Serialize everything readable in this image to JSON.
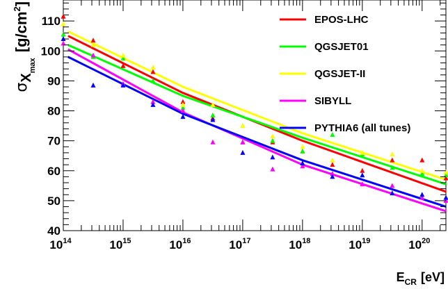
{
  "chart_data": {
    "type": "line",
    "xscale": "log",
    "xlim": [
      100000000000000.0,
      2.5e+20
    ],
    "ylim": [
      40,
      117
    ],
    "xlabel": {
      "main": "E",
      "sub": "CR",
      "unit": "[eV]"
    },
    "ylabel": {
      "sigma": "σ",
      "x": "X",
      "sub": "max",
      "unit_pre": "[g/cm",
      "sup": "2",
      "unit_post": "]"
    },
    "x_ticks": [
      {
        "value": 100000000000000.0,
        "base": "10",
        "exp": "14"
      },
      {
        "value": 1000000000000000.0,
        "base": "10",
        "exp": "15"
      },
      {
        "value": 1e+16,
        "base": "10",
        "exp": "16"
      },
      {
        "value": 1e+17,
        "base": "10",
        "exp": "17"
      },
      {
        "value": 1e+18,
        "base": "10",
        "exp": "18"
      },
      {
        "value": 1e+19,
        "base": "10",
        "exp": "19"
      },
      {
        "value": 1e+20,
        "base": "10",
        "exp": "20"
      }
    ],
    "y_ticks": [
      40,
      50,
      60,
      70,
      80,
      90,
      100,
      110
    ],
    "legend_position": "top-right",
    "series": [
      {
        "name": "EPOS-LHC",
        "color": "#ff0000",
        "line": [
          [
            120000000000000.0,
            105
          ],
          [
            1e+16,
            86
          ],
          [
            1e+18,
            70
          ],
          [
            2.5e+20,
            53
          ]
        ],
        "points": [
          [
            100000000000000.0,
            111.5
          ],
          [
            316000000000000.0,
            103.5
          ],
          [
            1000000000000000.0,
            95
          ],
          [
            3160000000000000.0,
            93
          ],
          [
            1e+16,
            83
          ],
          [
            3.16e+16,
            77.5
          ],
          [
            1e+17,
            69.5
          ],
          [
            3.16e+17,
            69.5
          ],
          [
            1e+18,
            66.5
          ],
          [
            3.16e+18,
            62
          ],
          [
            1e+19,
            60
          ],
          [
            3.16e+19,
            63.5
          ],
          [
            1e+20,
            63.5
          ],
          [
            2.5e+20,
            57.5
          ]
        ]
      },
      {
        "name": "QGSJET01",
        "color": "#00ff00",
        "line": [
          [
            120000000000000.0,
            102
          ],
          [
            1e+16,
            85
          ],
          [
            1e+18,
            71
          ],
          [
            2.5e+20,
            55.5
          ]
        ],
        "points": [
          [
            100000000000000.0,
            105.5
          ],
          [
            316000000000000.0,
            98
          ],
          [
            1000000000000000.0,
            97.5
          ],
          [
            3160000000000000.0,
            90
          ],
          [
            1e+16,
            81
          ],
          [
            3.16e+16,
            78.5
          ],
          [
            1e+17,
            75
          ],
          [
            3.16e+17,
            70
          ],
          [
            1e+18,
            66.5
          ],
          [
            3.16e+18,
            72
          ],
          [
            1e+19,
            65.5
          ],
          [
            3.16e+19,
            61
          ],
          [
            1e+20,
            59
          ],
          [
            2.5e+20,
            58.5
          ]
        ]
      },
      {
        "name": "QGSJET-II",
        "color": "#ffff00",
        "line": [
          [
            120000000000000.0,
            106.5
          ],
          [
            1e+16,
            88
          ],
          [
            1e+18,
            72.5
          ],
          [
            2.5e+20,
            57
          ]
        ],
        "points": [
          [
            100000000000000.0,
            109
          ],
          [
            316000000000000.0,
            102
          ],
          [
            1000000000000000.0,
            98.5
          ],
          [
            3160000000000000.0,
            94.5
          ],
          [
            1e+16,
            82
          ],
          [
            3.16e+16,
            82
          ],
          [
            1e+17,
            75
          ],
          [
            3.16e+17,
            71.5
          ],
          [
            1e+18,
            68
          ],
          [
            3.16e+18,
            63.5
          ],
          [
            1e+19,
            66
          ],
          [
            3.16e+19,
            65.5
          ],
          [
            1e+20,
            60
          ],
          [
            2.5e+20,
            59.5
          ]
        ]
      },
      {
        "name": "SIBYLL",
        "color": "#ff00ff",
        "line": [
          [
            120000000000000.0,
            100.5
          ],
          [
            1e+16,
            79.5
          ],
          [
            1e+18,
            62
          ],
          [
            2.5e+20,
            46.5
          ]
        ],
        "points": [
          [
            100000000000000.0,
            102.5
          ],
          [
            316000000000000.0,
            98.5
          ],
          [
            1000000000000000.0,
            89
          ],
          [
            3160000000000000.0,
            83
          ],
          [
            1e+16,
            80
          ],
          [
            3.16e+16,
            69.5
          ],
          [
            1e+17,
            69.5
          ],
          [
            3.16e+17,
            60.5
          ],
          [
            1e+18,
            61.5
          ],
          [
            3.16e+18,
            59
          ],
          [
            1e+19,
            55.5
          ],
          [
            3.16e+19,
            55
          ],
          [
            1e+20,
            51
          ],
          [
            2.5e+20,
            50
          ]
        ]
      },
      {
        "name": "PYTHIA6 (all tunes)",
        "color": "#0000ff",
        "line": [
          [
            120000000000000.0,
            98
          ],
          [
            1e+16,
            79
          ],
          [
            1e+18,
            63.5
          ],
          [
            2.5e+20,
            48
          ]
        ],
        "points": [
          [
            100000000000000.0,
            104
          ],
          [
            316000000000000.0,
            88.5
          ],
          [
            1000000000000000.0,
            88.5
          ],
          [
            3160000000000000.0,
            82
          ],
          [
            1e+16,
            78
          ],
          [
            3.16e+16,
            77
          ],
          [
            1e+17,
            66
          ],
          [
            3.16e+17,
            64.5
          ],
          [
            1e+18,
            62.5
          ],
          [
            3.16e+18,
            58
          ],
          [
            1e+19,
            58.5
          ],
          [
            3.16e+19,
            52.5
          ],
          [
            1e+20,
            52
          ],
          [
            2.5e+20,
            51
          ]
        ]
      }
    ]
  }
}
